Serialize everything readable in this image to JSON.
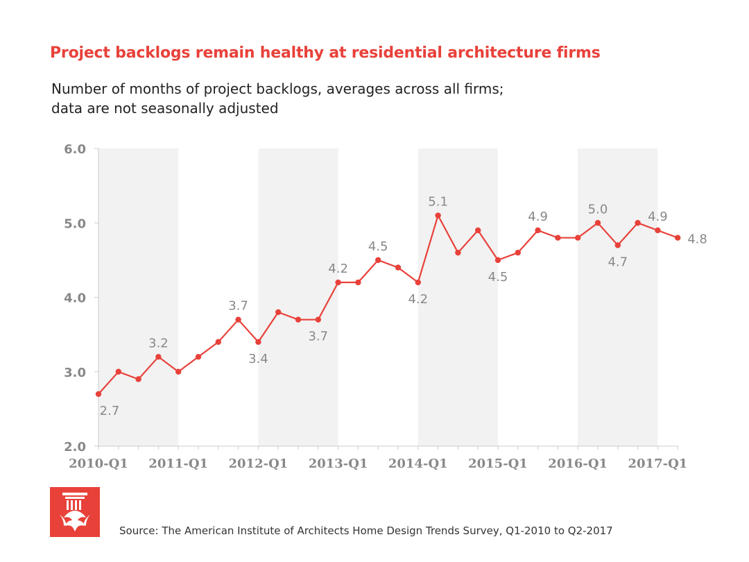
{
  "title": "Project backlogs remain healthy at residential architecture firms",
  "subtitle_lines": [
    "Number of months of project backlogs, averages across all firms;",
    "data are not seasonally adjusted"
  ],
  "source": "Source: The American Institute of Architects Home Design Trends Survey, Q1-2010 to Q2-2017",
  "colors": {
    "accent": "#e8413a",
    "band": "#f2f2f2",
    "axis_text": "#888888",
    "label_text": "#888888"
  },
  "chart_data": {
    "type": "line",
    "ylim": [
      2.0,
      6.0
    ],
    "yticks": [
      "2.0",
      "3.0",
      "4.0",
      "5.0",
      "6.0"
    ],
    "xtick_labels": [
      "2010-Q1",
      "2011-Q1",
      "2012-Q1",
      "2013-Q1",
      "2014-Q1",
      "2015-Q1",
      "2016-Q1",
      "2017-Q1"
    ],
    "x": [
      "2010-Q1",
      "2010-Q2",
      "2010-Q3",
      "2010-Q4",
      "2011-Q1",
      "2011-Q2",
      "2011-Q3",
      "2011-Q4",
      "2012-Q1",
      "2012-Q2",
      "2012-Q3",
      "2012-Q4",
      "2013-Q1",
      "2013-Q2",
      "2013-Q3",
      "2013-Q4",
      "2014-Q1",
      "2014-Q2",
      "2014-Q3",
      "2014-Q4",
      "2015-Q1",
      "2015-Q2",
      "2015-Q3",
      "2015-Q4",
      "2016-Q1",
      "2016-Q2",
      "2016-Q3",
      "2016-Q4",
      "2017-Q1",
      "2017-Q2"
    ],
    "values": [
      2.7,
      3.0,
      2.9,
      3.2,
      3.0,
      3.2,
      3.4,
      3.7,
      3.4,
      3.8,
      3.7,
      3.7,
      4.2,
      4.2,
      4.5,
      4.4,
      4.2,
      5.1,
      4.6,
      4.9,
      4.5,
      4.6,
      4.9,
      4.8,
      4.8,
      5.0,
      4.7,
      5.0,
      4.9,
      4.8
    ],
    "shaded_years": [
      "2010",
      "2012",
      "2014",
      "2016"
    ],
    "data_labels": [
      {
        "x": "2010-Q1",
        "text": "2.7",
        "pos": "below"
      },
      {
        "x": "2010-Q4",
        "text": "3.2",
        "pos": "above"
      },
      {
        "x": "2011-Q4",
        "text": "3.7",
        "pos": "above"
      },
      {
        "x": "2012-Q1",
        "text": "3.4",
        "pos": "below"
      },
      {
        "x": "2012-Q4",
        "text": "3.7",
        "pos": "below"
      },
      {
        "x": "2013-Q1",
        "text": "4.2",
        "pos": "above"
      },
      {
        "x": "2013-Q3",
        "text": "4.5",
        "pos": "above"
      },
      {
        "x": "2014-Q1",
        "text": "4.2",
        "pos": "below"
      },
      {
        "x": "2014-Q2",
        "text": "5.1",
        "pos": "above"
      },
      {
        "x": "2015-Q1",
        "text": "4.5",
        "pos": "below"
      },
      {
        "x": "2015-Q3",
        "text": "4.9",
        "pos": "above"
      },
      {
        "x": "2016-Q2",
        "text": "5.0",
        "pos": "above"
      },
      {
        "x": "2016-Q3",
        "text": "4.7",
        "pos": "below"
      },
      {
        "x": "2017-Q1",
        "text": "4.9",
        "pos": "above"
      },
      {
        "x": "2017-Q2",
        "text": "4.8",
        "pos": "right"
      }
    ],
    "grid": false
  }
}
